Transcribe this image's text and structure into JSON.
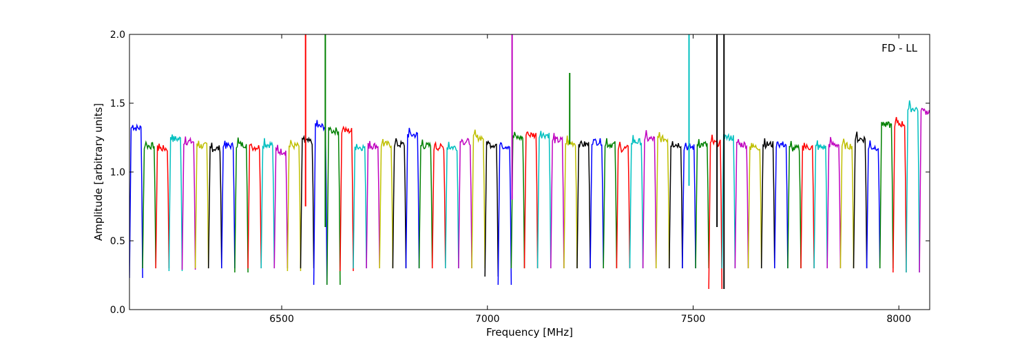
{
  "chart_data": {
    "type": "line",
    "title": "",
    "annotation": "FD - LL",
    "xlabel": "Frequency [MHz]",
    "ylabel": "Amplitude [arbitrary units]",
    "xlim": [
      6130,
      8075
    ],
    "ylim": [
      0.0,
      2.0
    ],
    "xticks": [
      6500,
      7000,
      7500,
      8000
    ],
    "xtick_labels": [
      "6500",
      "7000",
      "7500",
      "8000"
    ],
    "yticks": [
      0.0,
      0.5,
      1.0,
      1.5,
      2.0
    ],
    "ytick_labels": [
      "0.0",
      "0.5",
      "1.0",
      "1.5",
      "2.0"
    ],
    "grid": false,
    "legend": "none",
    "color_cycle": [
      "#0000ff",
      "#008000",
      "#ff0000",
      "#00bfbf",
      "#bf00bf",
      "#bfbf00",
      "#000000"
    ],
    "channel_start": 6130,
    "channel_width": 32,
    "channel_level": [
      1.32,
      1.19,
      1.17,
      1.24,
      1.22,
      1.19,
      1.17,
      1.19,
      1.2,
      1.18,
      1.2,
      1.15,
      1.19,
      1.22,
      1.33,
      1.3,
      1.3,
      1.18,
      1.19,
      1.2,
      1.2,
      1.27,
      1.19,
      1.18,
      1.18,
      1.22,
      1.25,
      1.2,
      1.19,
      1.25,
      1.27,
      1.27,
      1.23,
      1.21,
      1.2,
      1.22,
      1.2,
      1.17,
      1.22,
      1.24,
      1.24,
      1.2,
      1.18,
      1.2,
      1.21,
      1.25,
      1.2,
      1.18,
      1.2,
      1.2,
      1.17,
      1.18,
      1.18,
      1.2,
      1.19,
      1.24,
      1.18,
      1.34,
      1.35,
      1.46,
      1.44
    ],
    "channel_min": [
      0.23,
      0.3,
      0.3,
      0.28,
      0.29,
      0.3,
      0.3,
      0.3,
      0.27,
      0.3,
      0.3,
      0.3,
      0.28,
      0.3,
      0.18,
      0.18,
      0.28,
      0.3,
      0.3,
      0.3,
      0.3,
      0.3,
      0.3,
      0.3,
      0.3,
      0.3,
      0.3,
      0.24,
      0.18,
      0.3,
      0.3,
      0.3,
      0.3,
      0.3,
      0.3,
      0.3,
      0.3,
      0.3,
      0.3,
      0.3,
      0.3,
      0.3,
      0.3,
      0.3,
      0.15,
      0.3,
      0.3,
      0.3,
      0.3,
      0.3,
      0.3,
      0.3,
      0.3,
      0.3,
      0.3,
      0.3,
      0.3,
      0.3,
      0.27,
      0.27,
      0.27
    ],
    "spikes": [
      {
        "x": 6558,
        "top": 2.0,
        "bottom": 0.75,
        "color": "#ff0000"
      },
      {
        "x": 6606,
        "top": 2.0,
        "bottom": 0.6,
        "color": "#008000"
      },
      {
        "x": 7060,
        "top": 2.0,
        "bottom": 0.8,
        "color": "#bf00bf"
      },
      {
        "x": 7200,
        "top": 1.72,
        "bottom": 1.2,
        "color": "#008000"
      },
      {
        "x": 7490,
        "top": 2.0,
        "bottom": 0.9,
        "color": "#00bfbf"
      },
      {
        "x": 7558,
        "top": 2.0,
        "bottom": 0.6,
        "color": "#000000"
      },
      {
        "x": 7575,
        "top": 2.0,
        "bottom": 0.15,
        "color": "#000000"
      }
    ]
  }
}
